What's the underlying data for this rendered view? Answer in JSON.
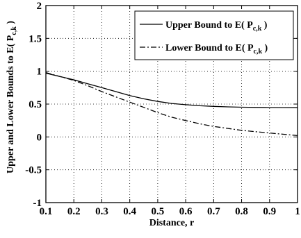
{
  "chart_data": {
    "type": "line",
    "xlabel": "Distance, r",
    "ylabel": "Upper and Lower Bounds to E( P",
    "ylabel_sub": "c,k",
    "ylabel_close": " )",
    "xlim": [
      0.1,
      1
    ],
    "ylim": [
      -1,
      2
    ],
    "xticks": [
      "0.1",
      "0.2",
      "0.3",
      "0.4",
      "0.5",
      "0.6",
      "0.7",
      "0.8",
      "0.9",
      "1"
    ],
    "yticks": [
      "-1",
      "-0.5",
      "0",
      "0.5",
      "1",
      "1.5",
      "2"
    ],
    "grid": true,
    "legend_position": "top-right",
    "x": [
      0.1,
      0.15,
      0.2,
      0.25,
      0.3,
      0.35,
      0.4,
      0.45,
      0.5,
      0.55,
      0.6,
      0.65,
      0.7,
      0.75,
      0.8,
      0.85,
      0.9,
      0.95,
      1.0
    ],
    "series": [
      {
        "name": "Upper Bound to E( P",
        "name_sub": "c,k",
        "name_close": " )",
        "style": "solid",
        "values": [
          0.97,
          0.92,
          0.87,
          0.81,
          0.75,
          0.69,
          0.63,
          0.58,
          0.54,
          0.51,
          0.49,
          0.475,
          0.465,
          0.458,
          0.452,
          0.449,
          0.447,
          0.446,
          0.445
        ]
      },
      {
        "name": "Lower Bound to E( P",
        "name_sub": "c,k",
        "name_close": " )",
        "style": "dashdot",
        "values": [
          0.98,
          0.92,
          0.86,
          0.78,
          0.69,
          0.61,
          0.53,
          0.45,
          0.37,
          0.3,
          0.25,
          0.2,
          0.16,
          0.13,
          0.1,
          0.08,
          0.06,
          0.04,
          0.02
        ]
      }
    ]
  }
}
